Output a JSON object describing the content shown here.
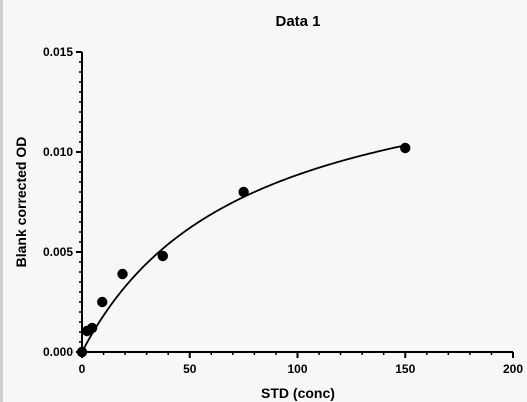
{
  "chart_data": {
    "type": "scatter",
    "title": "Data 1",
    "xlabel": "STD (conc)",
    "ylabel": "Blank corrected OD",
    "xlim": [
      0,
      200
    ],
    "ylim": [
      0,
      0.015
    ],
    "x_ticks": [
      0,
      50,
      100,
      150,
      200
    ],
    "x_tick_labels": [
      "0",
      "50",
      "100",
      "150",
      "200"
    ],
    "y_ticks": [
      0,
      0.005,
      0.01,
      0.015
    ],
    "y_tick_labels": [
      "0.000",
      "0.005",
      "0.010",
      "0.015"
    ],
    "grid": false,
    "series": [
      {
        "points": [
          {
            "x": 0,
            "y": 0.0
          },
          {
            "x": 2.3,
            "y": 0.00105
          },
          {
            "x": 4.7,
            "y": 0.0012
          },
          {
            "x": 9.4,
            "y": 0.0025
          },
          {
            "x": 18.8,
            "y": 0.0039
          },
          {
            "x": 37.5,
            "y": 0.0048
          },
          {
            "x": 75,
            "y": 0.008
          },
          {
            "x": 150,
            "y": 0.0102
          }
        ],
        "fit": {
          "model": "hyperbola",
          "ymax": 0.0155,
          "k": 75
        }
      }
    ],
    "colors": {
      "marker": "#000000",
      "line": "#000000"
    }
  }
}
